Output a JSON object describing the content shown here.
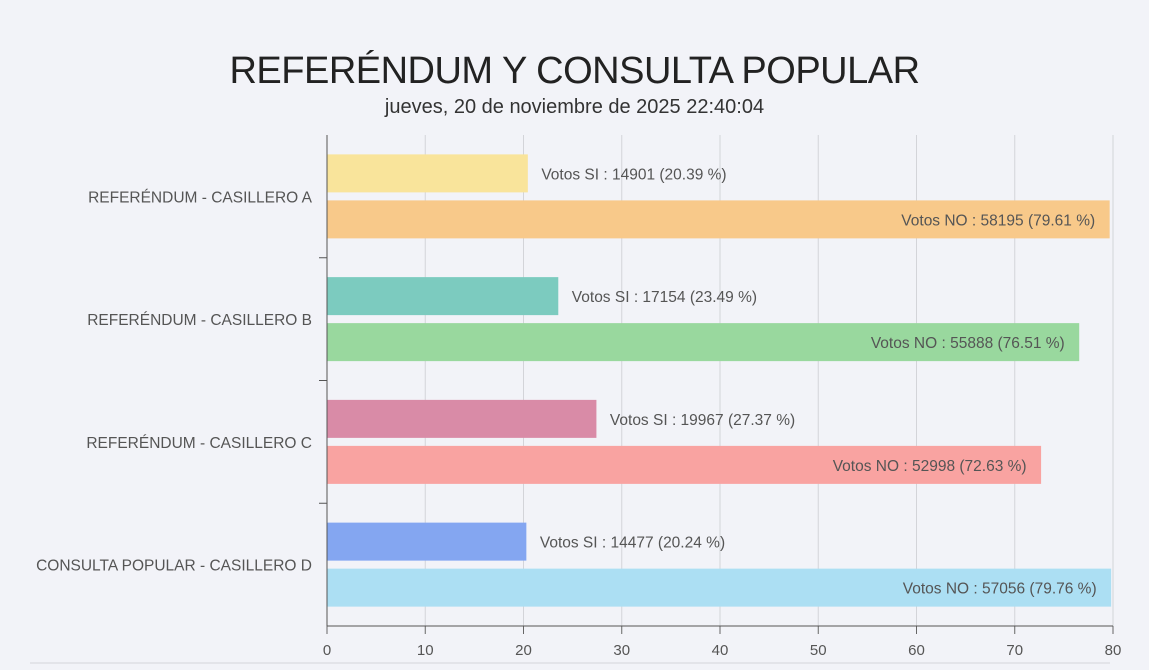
{
  "chart_data": {
    "type": "bar",
    "orientation": "horizontal",
    "title": "REFERÉNDUM Y CONSULTA POPULAR",
    "subtitle": "jueves, 20 de noviembre de 2025 22:40:04",
    "categories": [
      "REFERÉNDUM - CASILLERO A",
      "REFERÉNDUM - CASILLERO B",
      "REFERÉNDUM - CASILLERO C",
      "CONSULTA POPULAR - CASILLERO D"
    ],
    "series": [
      {
        "name": "Votos SI",
        "votes": [
          14901,
          17154,
          19967,
          14477
        ],
        "values": [
          20.39,
          23.49,
          27.37,
          20.24
        ],
        "colors": [
          "#f9e49b",
          "#7ccbbf",
          "#d98ba7",
          "#84a6f1"
        ]
      },
      {
        "name": "Votos NO",
        "votes": [
          58195,
          55888,
          52998,
          57056
        ],
        "values": [
          79.61,
          76.51,
          72.63,
          79.76
        ],
        "colors": [
          "#f8c98a",
          "#99d89e",
          "#f9a3a1",
          "#acdff3"
        ]
      }
    ],
    "data_labels": [
      [
        "Votos SI : 14901  (20.39 %)",
        "Votos NO : 58195  (79.61 %)"
      ],
      [
        "Votos SI : 17154  (23.49 %)",
        "Votos NO : 55888  (76.51 %)"
      ],
      [
        "Votos SI : 19967  (27.37 %)",
        "Votos NO : 52998  (72.63 %)"
      ],
      [
        "Votos SI : 14477  (20.24 %)",
        "Votos NO : 57056  (79.76 %)"
      ]
    ],
    "xlim": [
      0,
      80
    ],
    "xticks": [
      "0",
      "10",
      "20",
      "30",
      "40",
      "50",
      "60",
      "70",
      "80"
    ],
    "grid": true,
    "xlabel": "",
    "ylabel": ""
  }
}
